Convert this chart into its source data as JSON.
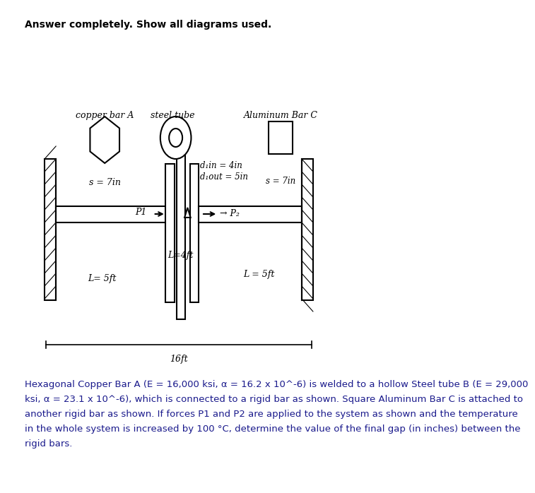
{
  "title_text": "Answer completely. Show all diagrams used.",
  "bg_color": "#ffffff",
  "label_copper_bar": "copper bar A",
  "label_steel_tube": "steel tube",
  "label_alum_bar": "Aluminum Bar C",
  "label_s_copper": "s = 7in",
  "label_s_alum": "s = 7in",
  "label_din": "d₁in = 4in",
  "label_dout": "d₁out = 5in",
  "label_L_copper": "L= 5ft",
  "label_L_steel": "L=4ft",
  "label_L_alum": "L = 5ft",
  "label_total": "16ft",
  "desc_lines": [
    "Hexagonal Copper Bar A (E = 16,000 ksi, α = 16.2 x 10^-6) is welded to a hollow Steel tube B (E = 29,000",
    "ksi, α = 23.1 x 10^-6), which is connected to a rigid bar as shown. Square Aluminum Bar C is attached to",
    "another rigid bar as shown. If forces P1 and P2 are applied to the system as shown and the temperature",
    "in the whole system is increased by 100 °C, determine the value of the final gap (in inches) between the",
    "rigid bars."
  ]
}
